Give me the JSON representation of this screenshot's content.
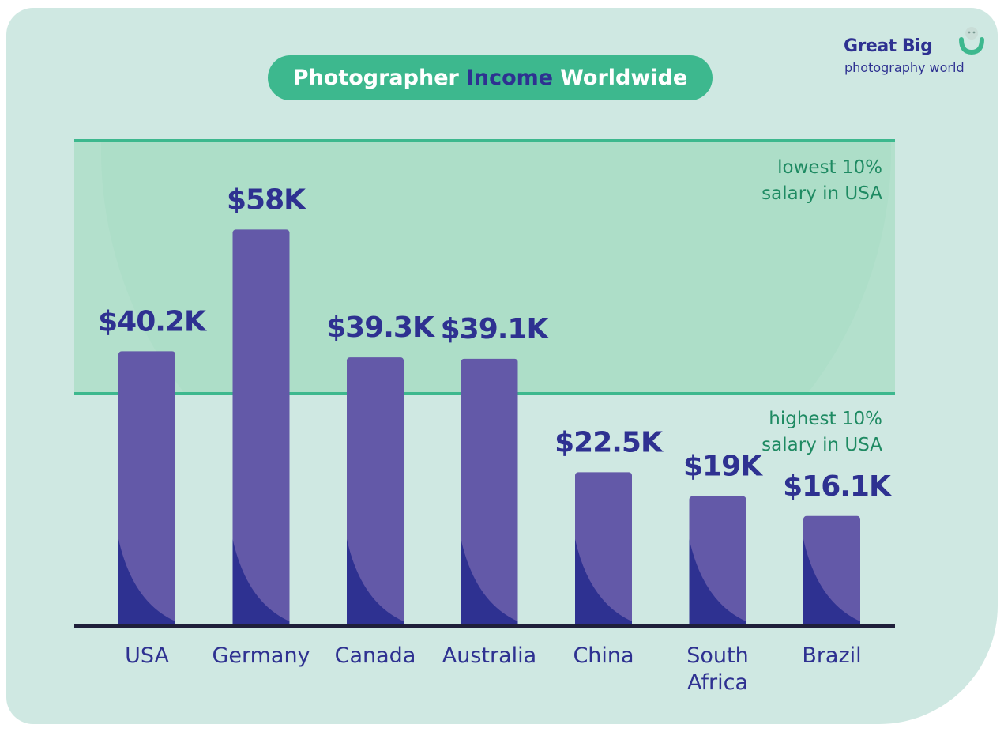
{
  "logo": {
    "line1": "Great Big",
    "line2": "photography world",
    "mark": "camera-person-icon"
  },
  "title": {
    "prefix": "Photographer",
    "highlight": "Income",
    "suffix": "Worldwide"
  },
  "colors": {
    "background": "#cfe8e2",
    "band": "#b3e0cc",
    "accent_green": "#3db88e",
    "bar": "#6359a8",
    "bar_shadow": "#2e3191",
    "text_navy": "#2e3191",
    "text_green": "#1e8a62",
    "axis": "#1f1f3a"
  },
  "chart_data": {
    "type": "bar",
    "title": "Photographer Income Worldwide",
    "categories": [
      "USA",
      "Germany",
      "Canada",
      "Australia",
      "China",
      "South Africa",
      "Brazil"
    ],
    "values": [
      40.2,
      58,
      39.3,
      39.1,
      22.5,
      19,
      16.1
    ],
    "value_labels": [
      "$40.2K",
      "$58K",
      "$39.3K",
      "$39.1K",
      "$22.5K",
      "$19K",
      "$16.1K"
    ],
    "unit": "thousand USD",
    "ylim": [
      0,
      71
    ],
    "grid": false,
    "reference_band": {
      "from": 34,
      "to": 71,
      "top_label": [
        "lowest 10%",
        "salary in USA"
      ],
      "bottom_label": [
        "highest 10%",
        "salary in USA"
      ]
    }
  }
}
